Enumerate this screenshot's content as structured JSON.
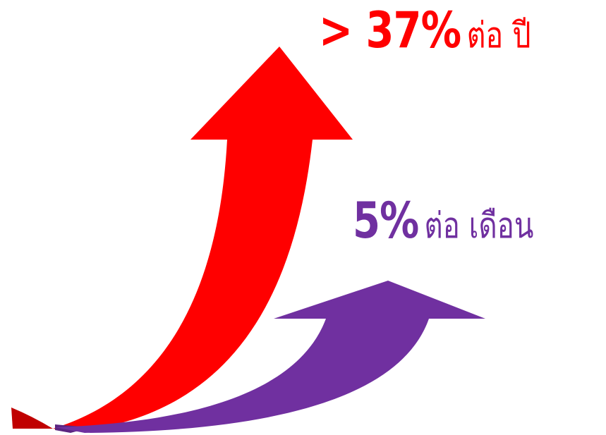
{
  "yearly": {
    "value_text": "> 37%",
    "unit_text": "ต่อ ปี",
    "color": "#ff0000"
  },
  "monthly": {
    "value_text": "5%",
    "unit_text": "ต่อ  เดือน",
    "color": "#7030a0"
  },
  "arrows": {
    "red_color": "#ff0000",
    "red_shadow_color": "#c00000",
    "purple_color": "#7030a0",
    "purple_shadow_color": "#5b2580"
  }
}
